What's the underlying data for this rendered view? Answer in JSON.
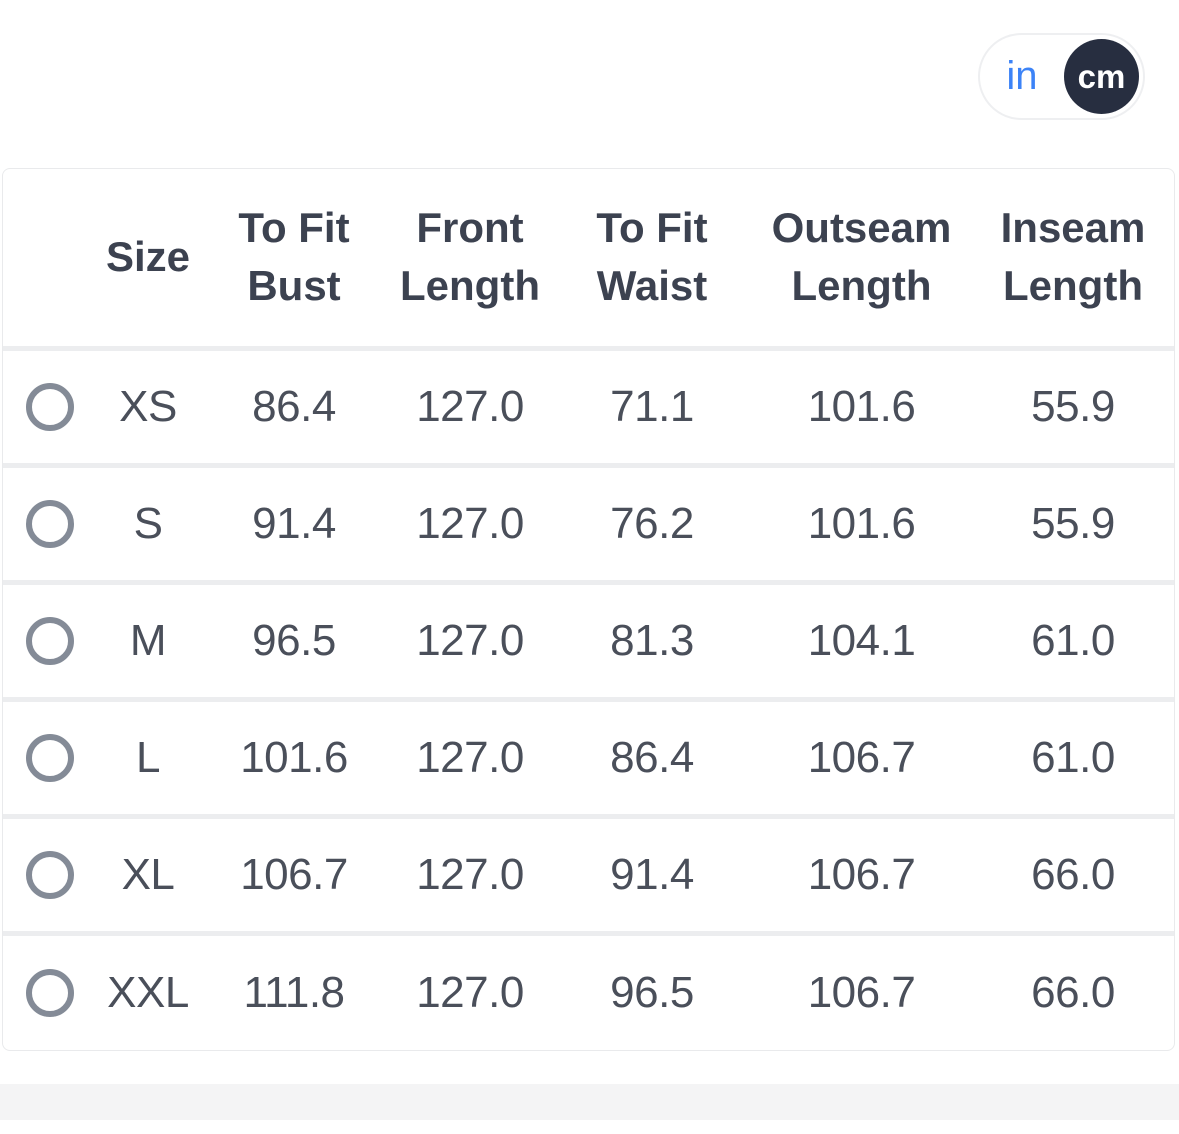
{
  "unit_toggle": {
    "in_label": "in",
    "cm_label": "cm",
    "selected": "cm"
  },
  "table": {
    "columns": {
      "size": "Size",
      "bust": "To Fit Bust",
      "front": "Front Length",
      "waist": "To Fit Waist",
      "outseam": "Outseam Length",
      "inseam": "Inseam Length"
    },
    "rows": [
      {
        "size": "XS",
        "bust": "86.4",
        "front": "127.0",
        "waist": "71.1",
        "outseam": "101.6",
        "inseam": "55.9",
        "selected": false
      },
      {
        "size": "S",
        "bust": "91.4",
        "front": "127.0",
        "waist": "76.2",
        "outseam": "101.6",
        "inseam": "55.9",
        "selected": false
      },
      {
        "size": "M",
        "bust": "96.5",
        "front": "127.0",
        "waist": "81.3",
        "outseam": "104.1",
        "inseam": "61.0",
        "selected": false
      },
      {
        "size": "L",
        "bust": "101.6",
        "front": "127.0",
        "waist": "86.4",
        "outseam": "106.7",
        "inseam": "61.0",
        "selected": false
      },
      {
        "size": "XL",
        "bust": "106.7",
        "front": "127.0",
        "waist": "91.4",
        "outseam": "106.7",
        "inseam": "66.0",
        "selected": false
      },
      {
        "size": "XXL",
        "bust": "111.8",
        "front": "127.0",
        "waist": "96.5",
        "outseam": "106.7",
        "inseam": "66.0",
        "selected": false
      }
    ]
  },
  "colors": {
    "accent_blue": "#3c83f7",
    "dark_navy": "#272e40",
    "header_text": "#3c4250",
    "cell_text": "#4a4f5a",
    "radio_ring": "#848b97",
    "table_border": "#e9eaec",
    "row_separator": "#ecedef",
    "divider_strip": "#f4f4f5"
  }
}
